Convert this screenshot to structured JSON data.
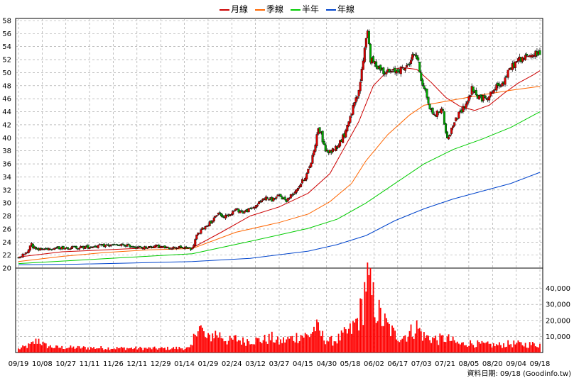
{
  "legend": {
    "items": [
      {
        "label": "月線",
        "color": "#cc0000"
      },
      {
        "label": "季線",
        "color": "#ff6600"
      },
      {
        "label": "半年",
        "color": "#00cc00"
      },
      {
        "label": "年線",
        "color": "#0044cc"
      }
    ]
  },
  "source_note": "資料日期: 09/18 (Goodinfo.tw)",
  "colors": {
    "up": "#dd0000",
    "down": "#00aa00",
    "volume": "#ff0000",
    "grid": "#999999"
  },
  "chart_data": {
    "type": "line",
    "price_axis": {
      "min": 20,
      "max": 58,
      "ticks": [
        "20",
        "22",
        "24",
        "26",
        "28",
        "30",
        "32",
        "34",
        "36",
        "38",
        "40",
        "42",
        "44",
        "46",
        "48",
        "50",
        "52",
        "54",
        "56",
        "58"
      ]
    },
    "volume_axis": {
      "min": 0,
      "max": 50000,
      "ticks": [
        "10,000",
        "20,000",
        "30,000",
        "40,000"
      ]
    },
    "x_labels": [
      "09/19",
      "10/08",
      "10/27",
      "11/11",
      "11/26",
      "12/11",
      "12/29",
      "01/14",
      "01/29",
      "02/24",
      "03/12",
      "03/27",
      "04/15",
      "04/30",
      "05/18",
      "06/02",
      "06/17",
      "07/03",
      "07/21",
      "08/05",
      "08/20",
      "09/04",
      "09/18"
    ],
    "price_path": [
      [
        0,
        21.6
      ],
      [
        6,
        22.4
      ],
      [
        9,
        24.0
      ],
      [
        10,
        23.2
      ],
      [
        15,
        22.9
      ],
      [
        25,
        23.1
      ],
      [
        45,
        23.2
      ],
      [
        60,
        23.5
      ],
      [
        75,
        23.5
      ],
      [
        85,
        23.1
      ],
      [
        95,
        23.4
      ],
      [
        103,
        23.1
      ],
      [
        110,
        23.2
      ],
      [
        120,
        23.0
      ],
      [
        123,
        25.0
      ],
      [
        127,
        26.0
      ],
      [
        135,
        27.5
      ],
      [
        138,
        28.6
      ],
      [
        141,
        27.8
      ],
      [
        146,
        28.3
      ],
      [
        150,
        29.0
      ],
      [
        155,
        28.6
      ],
      [
        160,
        29.0
      ],
      [
        165,
        29.8
      ],
      [
        170,
        30.8
      ],
      [
        175,
        30.5
      ],
      [
        180,
        31.1
      ],
      [
        185,
        30.4
      ],
      [
        190,
        31.6
      ],
      [
        195,
        33.0
      ],
      [
        199,
        34.4
      ],
      [
        202,
        36.3
      ],
      [
        205,
        39.2
      ],
      [
        207,
        41.6
      ],
      [
        209,
        40.5
      ],
      [
        212,
        38.0
      ],
      [
        215,
        37.8
      ],
      [
        220,
        38.7
      ],
      [
        225,
        40.5
      ],
      [
        230,
        44.0
      ],
      [
        235,
        47.0
      ],
      [
        238,
        52.0
      ],
      [
        240,
        55.5
      ],
      [
        241,
        56.6
      ],
      [
        243,
        52.0
      ],
      [
        248,
        51.0
      ],
      [
        252,
        50.3
      ],
      [
        257,
        50.0
      ],
      [
        263,
        50.5
      ],
      [
        268,
        50.8
      ],
      [
        272,
        52.5
      ],
      [
        274,
        53.0
      ],
      [
        276,
        51.5
      ],
      [
        278,
        49.0
      ],
      [
        281,
        47.2
      ],
      [
        284,
        44.5
      ],
      [
        287,
        43.5
      ],
      [
        290,
        44.0
      ],
      [
        293,
        44.3
      ],
      [
        295,
        40.5
      ],
      [
        297,
        40.0
      ],
      [
        300,
        42.0
      ],
      [
        305,
        44.0
      ],
      [
        310,
        45.6
      ],
      [
        313,
        47.5
      ],
      [
        316,
        46.5
      ],
      [
        320,
        46.0
      ],
      [
        325,
        46.5
      ],
      [
        330,
        47.8
      ],
      [
        335,
        48.7
      ],
      [
        340,
        50.8
      ],
      [
        345,
        52.0
      ],
      [
        350,
        52.3
      ],
      [
        355,
        52.8
      ],
      [
        360,
        53.0
      ]
    ],
    "series": [
      {
        "name": "月線",
        "x": [
          0,
          30,
          60,
          90,
          120,
          140,
          160,
          180,
          200,
          215,
          225,
          235,
          245,
          255,
          265,
          275,
          285,
          295,
          305,
          315,
          325,
          335,
          345,
          355,
          360
        ],
        "y": [
          21.7,
          22.5,
          22.8,
          23.1,
          23.1,
          25.5,
          28.0,
          29.4,
          31.5,
          34.5,
          38.5,
          42.5,
          48.0,
          50.3,
          50.8,
          50.5,
          48.5,
          46.2,
          44.8,
          44.2,
          45.0,
          46.8,
          48.4,
          49.6,
          50.3
        ]
      },
      {
        "name": "季線",
        "x": [
          0,
          30,
          60,
          90,
          120,
          150,
          180,
          200,
          215,
          230,
          240,
          255,
          270,
          280,
          290,
          300,
          320,
          340,
          360
        ],
        "y": [
          21.0,
          21.8,
          22.4,
          22.8,
          23.0,
          25.5,
          27.0,
          28.3,
          30.2,
          33.0,
          36.5,
          40.5,
          43.5,
          45.0,
          45.4,
          45.8,
          46.6,
          47.3,
          47.9
        ]
      },
      {
        "name": "半年",
        "x": [
          0,
          40,
          80,
          120,
          160,
          200,
          220,
          240,
          260,
          280,
          300,
          320,
          340,
          360
        ],
        "y": [
          20.7,
          21.2,
          21.7,
          22.2,
          24.1,
          26.1,
          27.5,
          30.0,
          33.0,
          36.0,
          38.2,
          39.8,
          41.6,
          44.0
        ]
      },
      {
        "name": "年線",
        "x": [
          0,
          40,
          80,
          120,
          160,
          200,
          220,
          240,
          260,
          280,
          300,
          320,
          340,
          360
        ],
        "y": [
          20.5,
          20.6,
          20.8,
          21.0,
          21.5,
          22.6,
          23.6,
          25.0,
          27.3,
          29.1,
          30.6,
          31.8,
          33.0,
          34.7
        ]
      }
    ],
    "volume_path": [
      [
        0,
        2200
      ],
      [
        8,
        4500
      ],
      [
        14,
        8000
      ],
      [
        18,
        4500
      ],
      [
        25,
        3200
      ],
      [
        60,
        2800
      ],
      [
        100,
        2500
      ],
      [
        112,
        2800
      ],
      [
        118,
        2600
      ],
      [
        120,
        4200
      ],
      [
        123,
        18000
      ],
      [
        126,
        15000
      ],
      [
        130,
        8000
      ],
      [
        135,
        12000
      ],
      [
        140,
        10500
      ],
      [
        145,
        7000
      ],
      [
        150,
        8500
      ],
      [
        155,
        7000
      ],
      [
        160,
        8000
      ],
      [
        165,
        7500
      ],
      [
        170,
        8000
      ],
      [
        175,
        9000
      ],
      [
        180,
        6500
      ],
      [
        185,
        8000
      ],
      [
        190,
        9000
      ],
      [
        195,
        11000
      ],
      [
        200,
        10000
      ],
      [
        205,
        16000
      ],
      [
        210,
        10000
      ],
      [
        215,
        7000
      ],
      [
        220,
        8000
      ],
      [
        225,
        11000
      ],
      [
        230,
        14000
      ],
      [
        235,
        22000
      ],
      [
        238,
        30000
      ],
      [
        240,
        47000
      ],
      [
        242,
        40000
      ],
      [
        244,
        35000
      ],
      [
        246,
        30000
      ],
      [
        250,
        22000
      ],
      [
        255,
        16000
      ],
      [
        260,
        11000
      ],
      [
        265,
        10000
      ],
      [
        270,
        12000
      ],
      [
        275,
        16000
      ],
      [
        280,
        10000
      ],
      [
        285,
        9000
      ],
      [
        290,
        8000
      ],
      [
        295,
        9000
      ],
      [
        300,
        7000
      ],
      [
        305,
        5000
      ],
      [
        310,
        6000
      ],
      [
        320,
        5000
      ],
      [
        330,
        4500
      ],
      [
        340,
        5500
      ],
      [
        350,
        5000
      ],
      [
        360,
        5000
      ]
    ]
  }
}
